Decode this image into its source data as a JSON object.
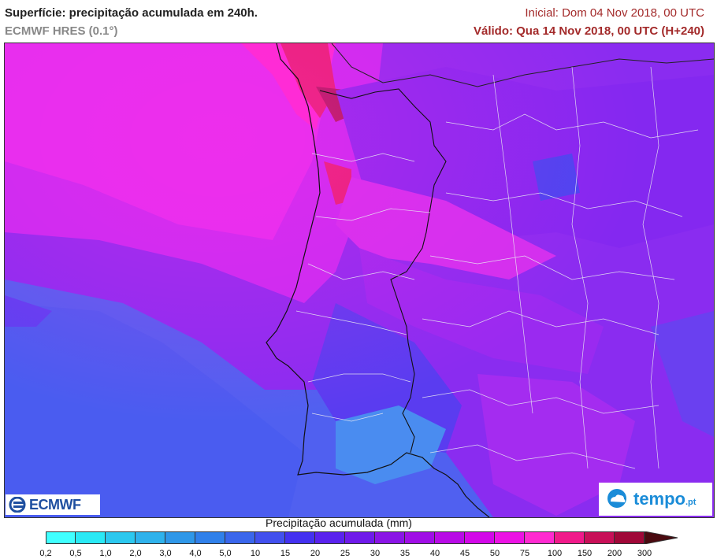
{
  "header": {
    "title": "Superfície: precipitação acumulada em 240h.",
    "model": "ECMWF HRES (0.1°)",
    "initial": "Inicial: Dom 04 Nov 2018, 00 UTC",
    "valid": "Válido: Qua 14 Nov 2018, 00 UTC (H+240)"
  },
  "logos": {
    "left": "ECMWF",
    "right_main": "tempo",
    "right_suffix": ".pt",
    "left_icon": "ecmwf-logo-icon",
    "right_icon": "cloud-logo-icon"
  },
  "colorbar": {
    "title": "Precipitação acumulada (mm)",
    "ticks": [
      "0,2",
      "0,5",
      "1,0",
      "2,0",
      "3,0",
      "4,0",
      "5,0",
      "10",
      "15",
      "20",
      "25",
      "30",
      "35",
      "40",
      "45",
      "50",
      "75",
      "100",
      "150",
      "200",
      "300"
    ],
    "colors": [
      "#40ffff",
      "#2ae9f5",
      "#2cc8ef",
      "#2fb2ec",
      "#2f97e8",
      "#3080ea",
      "#3a66ec",
      "#4250ee",
      "#4431f0",
      "#5a22ee",
      "#6f1aea",
      "#8a14e6",
      "#a00ee6",
      "#b80be6",
      "#d208e8",
      "#ec12e4",
      "#ff2ad0",
      "#f01a8a",
      "#c81058",
      "#a00838"
    ],
    "arrow_color": "#4a0a10"
  }
}
